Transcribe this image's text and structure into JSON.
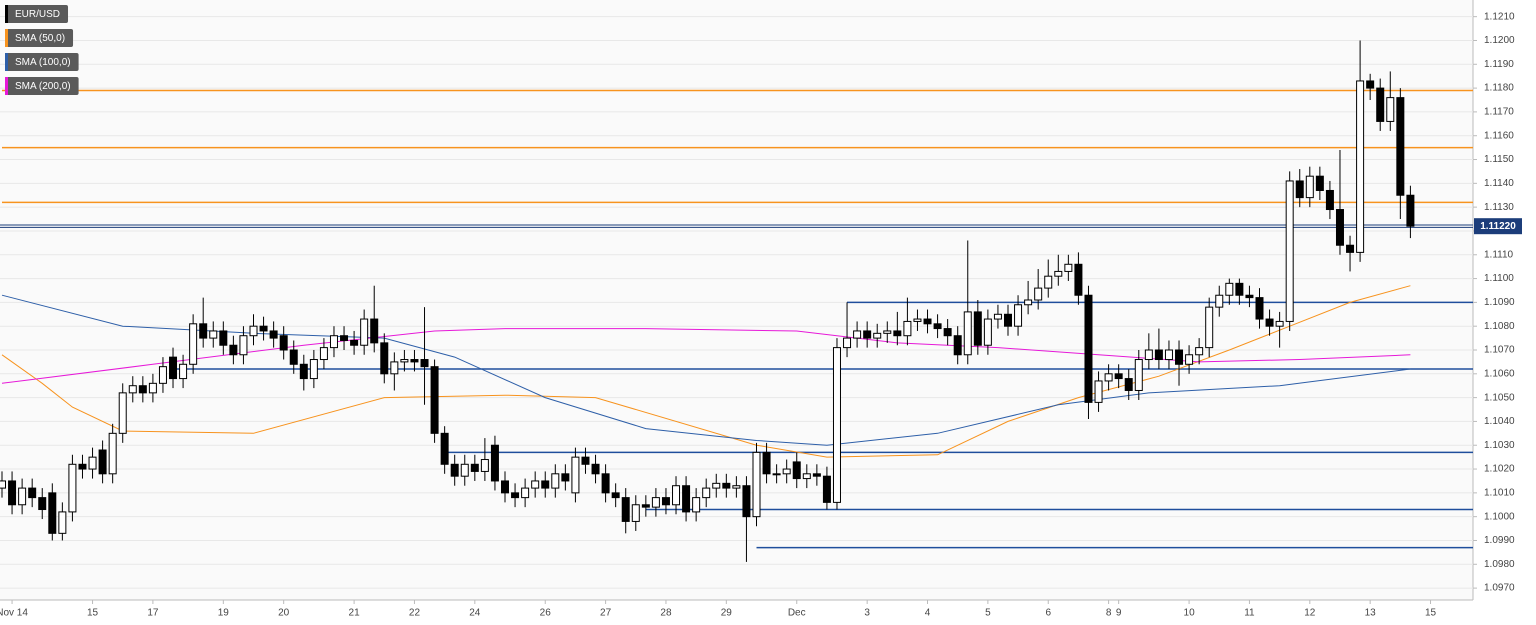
{
  "chart_data": {
    "type": "candlestick",
    "ylim": [
      1.0965,
      1.1217
    ],
    "yticks": [
      {
        "value": 1.121,
        "label": "1.1210"
      },
      {
        "value": 1.12,
        "label": "1.1200"
      },
      {
        "value": 1.119,
        "label": "1.1190"
      },
      {
        "value": 1.118,
        "label": "1.1180"
      },
      {
        "value": 1.117,
        "label": "1.1170"
      },
      {
        "value": 1.116,
        "label": "1.1160"
      },
      {
        "value": 1.115,
        "label": "1.1150"
      },
      {
        "value": 1.114,
        "label": "1.1140"
      },
      {
        "value": 1.113,
        "label": "1.1130"
      },
      {
        "value": 1.112,
        "label": "1.1120"
      },
      {
        "value": 1.111,
        "label": "1.1110"
      },
      {
        "value": 1.11,
        "label": "1.1100"
      },
      {
        "value": 1.109,
        "label": "1.1090"
      },
      {
        "value": 1.108,
        "label": "1.1080"
      },
      {
        "value": 1.107,
        "label": "1.1070"
      },
      {
        "value": 1.106,
        "label": "1.1060"
      },
      {
        "value": 1.105,
        "label": "1.1050"
      },
      {
        "value": 1.104,
        "label": "1.1040"
      },
      {
        "value": 1.103,
        "label": "1.1030"
      },
      {
        "value": 1.102,
        "label": "1.1020"
      },
      {
        "value": 1.101,
        "label": "1.1010"
      },
      {
        "value": 1.1,
        "label": "1.1000"
      },
      {
        "value": 1.099,
        "label": "1.0990"
      },
      {
        "value": 1.098,
        "label": "1.0980"
      },
      {
        "value": 1.097,
        "label": "1.0970"
      }
    ],
    "grid": true,
    "categories": [
      null,
      "Nov 14",
      null,
      null,
      null,
      null,
      null,
      null,
      null,
      "15",
      null,
      null,
      null,
      null,
      null,
      "17",
      null,
      null,
      null,
      null,
      null,
      null,
      "19",
      null,
      null,
      null,
      null,
      null,
      "20",
      null,
      null,
      null,
      null,
      null,
      null,
      "21",
      null,
      null,
      null,
      null,
      null,
      "22",
      null,
      null,
      null,
      null,
      null,
      "24",
      null,
      null,
      null,
      null,
      null,
      null,
      "26",
      null,
      null,
      null,
      null,
      null,
      "27",
      null,
      null,
      null,
      null,
      null,
      "28",
      null,
      null,
      null,
      null,
      null,
      "29",
      null,
      null,
      null,
      null,
      null,
      null,
      "Dec",
      null,
      null,
      null,
      null,
      null,
      null,
      "3",
      null,
      null,
      null,
      null,
      null,
      "4",
      null,
      null,
      null,
      null,
      null,
      "5",
      null,
      null,
      null,
      null,
      null,
      "6",
      null,
      null,
      null,
      null,
      null,
      "8",
      "9",
      null,
      null,
      null,
      null,
      null,
      null,
      "10",
      null,
      null,
      null,
      null,
      null,
      "11",
      null,
      null,
      null,
      null,
      null,
      "12",
      null,
      null,
      null,
      null,
      null,
      "13",
      null,
      null,
      null,
      null,
      null,
      "15"
    ],
    "series": [
      {
        "name": "EUR/USD",
        "type": "candlestick",
        "color": "#000000",
        "open": [
          1.1012,
          1.1015,
          1.1005,
          1.1012,
          1.1008,
          1.101,
          1.0993,
          1.1002,
          1.1022,
          1.102,
          1.1028,
          1.1018,
          1.1035,
          1.1052,
          1.1055,
          1.1052,
          1.1056,
          1.1067,
          1.1058,
          1.1064,
          1.1081,
          1.1075,
          1.1078,
          1.1072,
          1.1068,
          1.1076,
          1.108,
          1.1078,
          1.1076,
          1.107,
          1.1064,
          1.1058,
          1.1066,
          1.1071,
          1.1076,
          1.1074,
          1.1072,
          1.1083,
          1.1073,
          1.106,
          1.1065,
          1.1066,
          1.1066,
          1.1063,
          1.1035,
          1.1022,
          1.1017,
          1.1022,
          1.1019,
          1.103,
          1.1015,
          1.101,
          1.1008,
          1.1012,
          1.1015,
          1.1012,
          1.1018,
          1.101,
          1.1025,
          1.1022,
          1.1018,
          1.101,
          1.1008,
          1.0998,
          1.1005,
          1.1004,
          1.1008,
          1.1005,
          1.1013,
          1.1002,
          1.1008,
          1.1012,
          1.1014,
          1.1012,
          1.1013,
          1.1,
          1.1027,
          1.1018,
          1.1018,
          1.1023,
          1.1016,
          1.1018,
          1.1017,
          1.1006,
          1.1071,
          1.1075,
          1.1078,
          1.1075,
          1.1077,
          1.1078,
          1.1076,
          1.1082,
          1.1083,
          1.1081,
          1.1079,
          1.1076,
          1.1068,
          1.1086,
          1.1072,
          1.1083,
          1.1085,
          1.108,
          1.1089,
          1.1091,
          1.1096,
          1.1101,
          1.1103,
          1.1106,
          1.1093,
          1.1048,
          1.1057,
          1.106,
          1.1058,
          1.1053,
          1.1066,
          1.107,
          1.1066,
          1.107,
          1.1064,
          1.1068,
          1.1071,
          1.1088,
          1.1093,
          1.1098,
          1.1093,
          1.1092,
          1.1083,
          1.108,
          1.1082,
          1.1141,
          1.1134,
          1.1143,
          1.1137,
          1.1129,
          1.1114,
          1.1111,
          1.1183,
          1.118,
          1.1166,
          1.1176,
          1.1135,
          null,
          null
        ],
        "high": [
          1.1019,
          1.1019,
          1.1016,
          1.1016,
          1.1012,
          1.1014,
          1.1006,
          1.1026,
          1.1026,
          1.1029,
          1.1032,
          1.1039,
          1.1056,
          1.1059,
          1.1059,
          1.106,
          1.1067,
          1.1071,
          1.1068,
          1.1085,
          1.1092,
          1.1082,
          1.1082,
          1.1076,
          1.108,
          1.1085,
          1.1084,
          1.1082,
          1.108,
          1.1074,
          1.1068,
          1.107,
          1.1075,
          1.108,
          1.108,
          1.1078,
          1.1087,
          1.1097,
          1.1077,
          1.1069,
          1.107,
          1.107,
          1.1088,
          1.1066,
          1.1038,
          1.1026,
          1.1026,
          1.1026,
          1.1033,
          1.1034,
          1.1019,
          1.1014,
          1.1016,
          1.1019,
          1.1019,
          1.1022,
          1.1022,
          1.1029,
          1.1029,
          1.1026,
          1.1022,
          1.1014,
          1.1012,
          1.1009,
          1.1009,
          1.1012,
          1.1012,
          1.1017,
          1.1017,
          1.1012,
          1.1016,
          1.1018,
          1.1018,
          1.1017,
          1.1017,
          1.1031,
          1.1031,
          1.1022,
          1.1024,
          1.1027,
          1.1022,
          1.1022,
          1.1021,
          1.1075,
          1.109,
          1.1082,
          1.1082,
          1.1081,
          1.1082,
          1.1086,
          1.1092,
          1.1087,
          1.1087,
          1.1085,
          1.1083,
          1.108,
          1.1116,
          1.1091,
          1.1087,
          1.1089,
          1.1089,
          1.1093,
          1.1099,
          1.1104,
          1.1108,
          1.111,
          1.111,
          1.1111,
          1.1097,
          1.1061,
          1.1064,
          1.1064,
          1.1062,
          1.107,
          1.1077,
          1.1079,
          1.1074,
          1.1074,
          1.1072,
          1.1075,
          1.1092,
          1.1097,
          1.11,
          1.11,
          1.1097,
          1.1096,
          1.1087,
          1.1086,
          1.1145,
          1.1146,
          1.1147,
          1.1147,
          1.1141,
          1.1154,
          1.1118,
          1.12,
          1.1186,
          1.1184,
          1.1187,
          1.118,
          1.1139,
          null,
          null
        ],
        "low": [
          1.1008,
          1.1001,
          1.1001,
          1.1004,
          1.0999,
          1.099,
          1.099,
          1.0998,
          1.1016,
          1.1016,
          1.1014,
          1.1014,
          1.1031,
          1.1048,
          1.1048,
          1.1048,
          1.1052,
          1.1054,
          1.1054,
          1.106,
          1.1071,
          1.1071,
          1.1068,
          1.1064,
          1.1064,
          1.1072,
          1.1074,
          1.1071,
          1.1066,
          1.106,
          1.1053,
          1.1054,
          1.1062,
          1.1067,
          1.107,
          1.1068,
          1.1068,
          1.1069,
          1.1056,
          1.1053,
          1.1061,
          1.1061,
          1.1047,
          1.1031,
          1.1018,
          1.1013,
          1.1013,
          1.1015,
          1.1015,
          1.1011,
          1.1006,
          1.1004,
          1.1004,
          1.1008,
          1.1008,
          1.1008,
          1.1011,
          1.1006,
          1.1018,
          1.1014,
          1.1006,
          1.1004,
          1.0993,
          1.0994,
          1.1,
          1.1,
          1.1001,
          1.1001,
          1.0998,
          1.0998,
          1.1004,
          1.1008,
          1.1008,
          1.1008,
          1.0981,
          1.0996,
          1.1014,
          1.1014,
          1.1014,
          1.1012,
          1.1012,
          1.1013,
          1.1003,
          1.1003,
          1.1067,
          1.1071,
          1.1071,
          1.1071,
          1.1073,
          1.1072,
          1.1072,
          1.1078,
          1.1077,
          1.1075,
          1.1072,
          1.1064,
          1.1064,
          1.1068,
          1.1068,
          1.1079,
          1.1076,
          1.1076,
          1.1085,
          1.1087,
          1.1092,
          1.1097,
          1.1099,
          1.1089,
          1.1041,
          1.1044,
          1.1053,
          1.1054,
          1.1049,
          1.1049,
          1.1062,
          1.1062,
          1.1062,
          1.1055,
          1.106,
          1.1064,
          1.1067,
          1.1084,
          1.1089,
          1.1089,
          1.1088,
          1.1079,
          1.1076,
          1.1071,
          1.1078,
          1.113,
          1.113,
          1.1133,
          1.1125,
          1.111,
          1.1103,
          1.1107,
          1.1175,
          1.1162,
          1.1162,
          1.1125,
          1.1117,
          null,
          null
        ],
        "close": [
          1.1015,
          1.1005,
          1.1012,
          1.1008,
          1.1003,
          1.0993,
          1.1002,
          1.1022,
          1.102,
          1.1025,
          1.1018,
          1.1035,
          1.1052,
          1.1055,
          1.1052,
          1.1056,
          1.1063,
          1.1058,
          1.1064,
          1.1081,
          1.1075,
          1.1078,
          1.1072,
          1.1068,
          1.1076,
          1.108,
          1.1078,
          1.1075,
          1.107,
          1.1064,
          1.1058,
          1.1066,
          1.1071,
          1.1076,
          1.1074,
          1.1072,
          1.1083,
          1.1073,
          1.106,
          1.1065,
          1.1066,
          1.1065,
          1.1063,
          1.1035,
          1.1022,
          1.1017,
          1.1022,
          1.1019,
          1.1024,
          1.1015,
          1.101,
          1.1008,
          1.1012,
          1.1015,
          1.1012,
          1.1018,
          1.1015,
          1.1025,
          1.1022,
          1.1018,
          1.101,
          1.1008,
          1.0998,
          1.1005,
          1.1004,
          1.1008,
          1.1005,
          1.1013,
          1.1002,
          1.1008,
          1.1012,
          1.1014,
          1.1012,
          1.1013,
          1.1,
          1.1027,
          1.1018,
          1.1018,
          1.102,
          1.1016,
          1.1018,
          1.1017,
          1.1006,
          1.1071,
          1.1075,
          1.1078,
          1.1075,
          1.1077,
          1.1078,
          1.1076,
          1.1082,
          1.1083,
          1.1081,
          1.1079,
          1.1076,
          1.1068,
          1.1086,
          1.1072,
          1.1083,
          1.1085,
          1.108,
          1.1089,
          1.1091,
          1.1096,
          1.1101,
          1.1103,
          1.1106,
          1.1093,
          1.1048,
          1.1057,
          1.106,
          1.1058,
          1.1053,
          1.1066,
          1.107,
          1.1066,
          1.107,
          1.1064,
          1.1068,
          1.1071,
          1.1088,
          1.1093,
          1.1098,
          1.1093,
          1.1092,
          1.1083,
          1.108,
          1.1082,
          1.1141,
          1.1134,
          1.1143,
          1.1137,
          1.1129,
          1.1114,
          1.1111,
          1.1183,
          1.118,
          1.1166,
          1.1176,
          1.1135,
          1.1122,
          null,
          null
        ]
      },
      {
        "name": "SMA (50,0)",
        "type": "line",
        "color": "#f7931e",
        "x": [
          0,
          4,
          7,
          12,
          25,
          38,
          50,
          59,
          75,
          82,
          93,
          100,
          107,
          115,
          122,
          128,
          134,
          140
        ],
        "values": [
          1.1068,
          1.1056,
          1.1046,
          1.1036,
          1.1035,
          1.105,
          1.1051,
          1.105,
          1.103,
          1.1025,
          1.1026,
          1.104,
          1.105,
          1.1059,
          1.107,
          1.108,
          1.109,
          1.1097
        ]
      },
      {
        "name": "SMA (100,0)",
        "type": "line",
        "color": "#2e5fa8",
        "x": [
          0,
          12,
          25,
          38,
          45,
          54,
          64,
          75,
          82,
          93,
          105,
          114,
          127,
          140
        ],
        "values": [
          1.1093,
          1.108,
          1.1077,
          1.1075,
          1.1067,
          1.105,
          1.1037,
          1.1032,
          1.103,
          1.1035,
          1.1047,
          1.1052,
          1.1055,
          1.1062
        ]
      },
      {
        "name": "SMA (200,0)",
        "type": "line",
        "color": "#e619d8",
        "x": [
          0,
          15,
          30,
          43,
          50,
          64,
          79,
          89,
          99,
          109,
          119,
          129,
          140
        ],
        "values": [
          1.1056,
          1.1064,
          1.1072,
          1.1078,
          1.1079,
          1.1079,
          1.1078,
          1.1073,
          1.1071,
          1.1068,
          1.1065,
          1.1066,
          1.1068
        ]
      }
    ],
    "levels": [
      {
        "value": 1.1179,
        "color": "#f7931e"
      },
      {
        "value": 1.1155,
        "color": "#f7931e"
      },
      {
        "value": 1.1132,
        "color": "#f7931e"
      },
      {
        "value": 1.109,
        "color": "#1f4e9c"
      },
      {
        "value": 1.1062,
        "color": "#1f4e9c"
      },
      {
        "value": 1.1027,
        "color": "#1f4e9c"
      },
      {
        "value": 1.1003,
        "color": "#1f4e9c"
      },
      {
        "value": 1.0987,
        "color": "#1f4e9c"
      }
    ],
    "last_price": {
      "value": 1.1122,
      "label": "1.11220",
      "color": "#1c3d7a"
    }
  }
}
